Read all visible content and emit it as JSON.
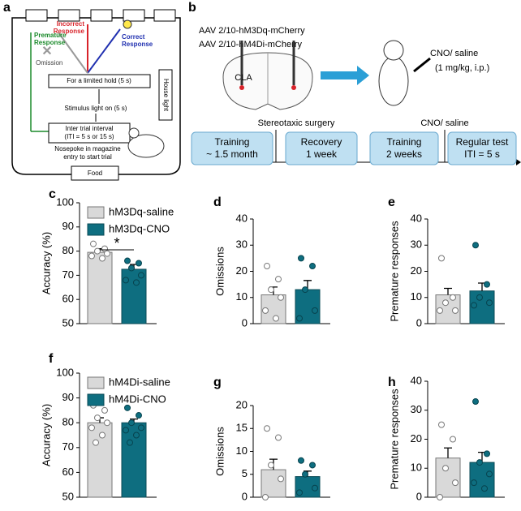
{
  "panel_a": {
    "label": "a",
    "premature": [
      "Premature",
      "Response"
    ],
    "incorrect": [
      "Incorrect",
      "Response"
    ],
    "correct": [
      "Correct",
      "Response"
    ],
    "omission": "Omission",
    "limited_hold": "For a limited hold (5 s)",
    "stimulus": "Stimulus light on (5 s)",
    "house_light": "House light",
    "iti": [
      "Inter trial interval",
      "(ITI = 5 s or 15 s)"
    ],
    "nosepoke": [
      "Nosepoke in magazine",
      "entry to start trial"
    ],
    "food": "Food"
  },
  "panel_b": {
    "label": "b",
    "virus": [
      "AAV 2/10-hM3Dq-mCherry",
      "AAV 2/10-hM4Di-mCherry"
    ],
    "region": "CLA",
    "injection": [
      "CNO/ saline",
      "(1 mg/kg, i.p.)"
    ],
    "surgery": "Stereotaxic surgery",
    "treatment": "CNO/ saline",
    "timeline": [
      [
        "Training",
        "~ 1.5 month"
      ],
      [
        "Recovery",
        "1 week"
      ],
      [
        "Training",
        "2 weeks"
      ],
      [
        "Regular test",
        "ITI = 5 s"
      ]
    ]
  },
  "chart_data": [
    {
      "label": "c",
      "type": "bar",
      "ylabel": "Accuracy (%)",
      "ylim": [
        50,
        100
      ],
      "yticks": [
        50,
        60,
        70,
        80,
        90,
        100
      ],
      "annotations": [
        {
          "text": "*"
        }
      ],
      "series": [
        {
          "name": "hM3Dq-saline",
          "color": "#d9d9d9",
          "values": [
            79.5
          ],
          "error": [
            1.5
          ],
          "points": [
            83,
            81,
            80,
            79,
            78,
            77
          ]
        },
        {
          "name": "hM3Dq-CNO",
          "color": "#0e6e80",
          "values": [
            72.5
          ],
          "error": [
            2
          ],
          "points": [
            76,
            75,
            73,
            70,
            68,
            67
          ]
        }
      ]
    },
    {
      "label": "d",
      "type": "bar",
      "ylabel": "Omissions",
      "ylim": [
        0,
        40
      ],
      "yticks": [
        0,
        10,
        20,
        30,
        40
      ],
      "series": [
        {
          "color": "#d9d9d9",
          "values": [
            11
          ],
          "error": [
            3
          ],
          "points": [
            22,
            17,
            13,
            10,
            5,
            2
          ]
        },
        {
          "color": "#0e6e80",
          "values": [
            13
          ],
          "error": [
            3.5
          ],
          "points": [
            25,
            22,
            13,
            5,
            2
          ]
        }
      ]
    },
    {
      "label": "e",
      "type": "bar",
      "ylabel": "Premature responses",
      "ylim": [
        0,
        40
      ],
      "yticks": [
        0,
        10,
        20,
        30,
        40
      ],
      "series": [
        {
          "color": "#d9d9d9",
          "values": [
            11
          ],
          "error": [
            2.5
          ],
          "points": [
            25,
            10,
            8,
            5,
            5
          ]
        },
        {
          "color": "#0e6e80",
          "values": [
            12.5
          ],
          "error": [
            3
          ],
          "points": [
            30,
            15,
            10,
            8,
            7
          ]
        }
      ]
    },
    {
      "label": "f",
      "type": "bar",
      "ylabel": "Accuracy (%)",
      "ylim": [
        50,
        100
      ],
      "yticks": [
        50,
        60,
        70,
        80,
        90,
        100
      ],
      "series": [
        {
          "name": "hM4Di-saline",
          "color": "#d9d9d9",
          "values": [
            80
          ],
          "error": [
            2
          ],
          "points": [
            87,
            85,
            82,
            80,
            78,
            75,
            72
          ]
        },
        {
          "name": "hM4Di-CNO",
          "color": "#0e6e80",
          "values": [
            80
          ],
          "error": [
            1.5
          ],
          "points": [
            86,
            83,
            80,
            78,
            77,
            75,
            72
          ]
        }
      ]
    },
    {
      "label": "g",
      "type": "bar",
      "ylabel": "Omissions",
      "ylim": [
        0,
        20
      ],
      "yticks": [
        0,
        5,
        10,
        15,
        20
      ],
      "series": [
        {
          "color": "#d9d9d9",
          "values": [
            6
          ],
          "error": [
            2.3
          ],
          "points": [
            15,
            13,
            7,
            4,
            0
          ]
        },
        {
          "color": "#0e6e80",
          "values": [
            4.5
          ],
          "error": [
            1.2
          ],
          "points": [
            8,
            7,
            5,
            2,
            1
          ]
        }
      ]
    },
    {
      "label": "h",
      "type": "bar",
      "ylabel": "Premature responses",
      "ylim": [
        0,
        40
      ],
      "yticks": [
        0,
        10,
        20,
        30,
        40
      ],
      "series": [
        {
          "color": "#d9d9d9",
          "values": [
            13.5
          ],
          "error": [
            3.5
          ],
          "points": [
            25,
            20,
            10,
            5,
            0
          ]
        },
        {
          "color": "#0e6e80",
          "values": [
            12
          ],
          "error": [
            3.5
          ],
          "points": [
            33,
            15,
            12,
            8,
            5,
            3
          ]
        }
      ]
    }
  ]
}
